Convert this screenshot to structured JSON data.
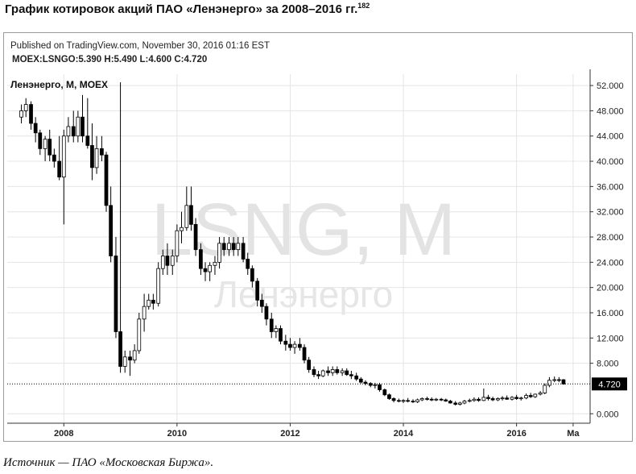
{
  "header": {
    "title": "График котировок акций ПАО «Ленэнерго» за 2008–2016 гг.",
    "footnote_ref": "182"
  },
  "chart_header": {
    "published": "Published on TradingView.com, November 30, 2016 01:16 EST",
    "ohlc_line": "MOEX:LSNGO:5.390 H:5.490 L:4.600 C:4.720"
  },
  "footer": {
    "source": "Источник — ПАО «Московская Биржа»."
  },
  "chart_data": {
    "type": "candlestick",
    "legend_label": "Ленэнерго, M, MOEX",
    "watermark": {
      "ticker": "LSNG, M",
      "name": "Ленэнерго"
    },
    "current_price_label": "4.720",
    "current_price": 4.72,
    "x_ticks": [
      {
        "label": "2008",
        "t": 2008.0
      },
      {
        "label": "2010",
        "t": 2010.0
      },
      {
        "label": "2012",
        "t": 2012.0
      },
      {
        "label": "2014",
        "t": 2014.0
      },
      {
        "label": "2016",
        "t": 2016.0
      },
      {
        "label": "Ma",
        "t": 2017.0
      }
    ],
    "y_ticks": [
      "52.000",
      "48.000",
      "44.000",
      "40.000",
      "36.000",
      "32.000",
      "28.000",
      "24.000",
      "20.000",
      "16.000",
      "12.000",
      "8.000",
      "0.000"
    ],
    "ylim": [
      -1.5,
      53.8
    ],
    "xlim": [
      2007.0,
      2017.3
    ],
    "colors": {
      "up": "#ffffff",
      "down": "#000000",
      "outline": "#000000",
      "grid": "#e4e4e4",
      "axis": "#333333"
    },
    "candles": [
      {
        "t": 2007.25,
        "o": 47,
        "h": 49,
        "l": 46,
        "c": 48
      },
      {
        "t": 2007.33,
        "o": 48,
        "h": 50,
        "l": 47,
        "c": 49
      },
      {
        "t": 2007.42,
        "o": 49,
        "h": 49.5,
        "l": 45,
        "c": 46
      },
      {
        "t": 2007.5,
        "o": 46,
        "h": 47,
        "l": 43,
        "c": 44.5
      },
      {
        "t": 2007.58,
        "o": 44.5,
        "h": 45,
        "l": 41,
        "c": 42
      },
      {
        "t": 2007.67,
        "o": 42,
        "h": 44,
        "l": 40,
        "c": 43.5
      },
      {
        "t": 2007.75,
        "o": 43.5,
        "h": 45,
        "l": 40,
        "c": 41
      },
      {
        "t": 2007.83,
        "o": 41,
        "h": 42,
        "l": 39,
        "c": 40
      },
      {
        "t": 2007.92,
        "o": 40,
        "h": 44,
        "l": 37,
        "c": 37.5
      },
      {
        "t": 2008.0,
        "o": 37.5,
        "h": 45,
        "l": 30,
        "c": 44
      },
      {
        "t": 2008.08,
        "o": 44,
        "h": 47,
        "l": 43,
        "c": 45.5
      },
      {
        "t": 2008.17,
        "o": 45.5,
        "h": 48,
        "l": 43,
        "c": 44
      },
      {
        "t": 2008.25,
        "o": 44,
        "h": 48,
        "l": 43,
        "c": 47
      },
      {
        "t": 2008.33,
        "o": 47,
        "h": 50.5,
        "l": 43,
        "c": 44
      },
      {
        "t": 2008.42,
        "o": 44,
        "h": 50,
        "l": 42,
        "c": 42.5
      },
      {
        "t": 2008.5,
        "o": 42.5,
        "h": 46,
        "l": 37,
        "c": 39
      },
      {
        "t": 2008.58,
        "o": 39,
        "h": 44,
        "l": 38,
        "c": 42
      },
      {
        "t": 2008.67,
        "o": 42,
        "h": 44,
        "l": 40,
        "c": 41
      },
      {
        "t": 2008.75,
        "o": 41,
        "h": 41.5,
        "l": 32,
        "c": 33
      },
      {
        "t": 2008.83,
        "o": 33,
        "h": 36,
        "l": 24,
        "c": 25
      },
      {
        "t": 2008.92,
        "o": 25,
        "h": 28,
        "l": 12,
        "c": 13
      },
      {
        "t": 2009.0,
        "o": 13,
        "h": 52.5,
        "l": 6.5,
        "c": 7.5
      },
      {
        "t": 2009.08,
        "o": 7.5,
        "h": 10,
        "l": 6.5,
        "c": 9
      },
      {
        "t": 2009.17,
        "o": 9,
        "h": 10,
        "l": 6,
        "c": 8.5
      },
      {
        "t": 2009.25,
        "o": 8.5,
        "h": 11,
        "l": 8,
        "c": 10
      },
      {
        "t": 2009.33,
        "o": 10,
        "h": 16,
        "l": 9.5,
        "c": 15
      },
      {
        "t": 2009.42,
        "o": 15,
        "h": 19,
        "l": 13,
        "c": 17
      },
      {
        "t": 2009.5,
        "o": 17,
        "h": 19,
        "l": 16.5,
        "c": 18
      },
      {
        "t": 2009.58,
        "o": 18,
        "h": 19,
        "l": 16.5,
        "c": 17.5
      },
      {
        "t": 2009.67,
        "o": 17.5,
        "h": 24,
        "l": 17,
        "c": 23
      },
      {
        "t": 2009.75,
        "o": 23,
        "h": 26,
        "l": 22,
        "c": 25
      },
      {
        "t": 2009.83,
        "o": 25,
        "h": 27,
        "l": 22,
        "c": 23.5
      },
      {
        "t": 2009.92,
        "o": 23.5,
        "h": 26,
        "l": 22,
        "c": 25
      },
      {
        "t": 2010.0,
        "o": 25,
        "h": 30,
        "l": 24,
        "c": 29
      },
      {
        "t": 2010.08,
        "o": 29,
        "h": 32,
        "l": 27,
        "c": 29.5
      },
      {
        "t": 2010.17,
        "o": 29.5,
        "h": 36,
        "l": 29,
        "c": 33
      },
      {
        "t": 2010.25,
        "o": 33,
        "h": 36,
        "l": 29,
        "c": 30
      },
      {
        "t": 2010.33,
        "o": 30,
        "h": 31,
        "l": 25,
        "c": 26
      },
      {
        "t": 2010.42,
        "o": 26,
        "h": 27,
        "l": 22,
        "c": 23
      },
      {
        "t": 2010.5,
        "o": 23,
        "h": 24,
        "l": 21,
        "c": 22.5
      },
      {
        "t": 2010.58,
        "o": 22.5,
        "h": 24,
        "l": 21,
        "c": 23.5
      },
      {
        "t": 2010.67,
        "o": 23.5,
        "h": 25,
        "l": 22,
        "c": 24
      },
      {
        "t": 2010.75,
        "o": 24,
        "h": 28,
        "l": 23,
        "c": 27
      },
      {
        "t": 2010.83,
        "o": 27,
        "h": 28,
        "l": 25,
        "c": 26
      },
      {
        "t": 2010.92,
        "o": 26,
        "h": 28,
        "l": 25,
        "c": 27
      },
      {
        "t": 2011.0,
        "o": 27,
        "h": 28,
        "l": 25,
        "c": 26
      },
      {
        "t": 2011.08,
        "o": 26,
        "h": 28,
        "l": 25,
        "c": 27
      },
      {
        "t": 2011.17,
        "o": 27,
        "h": 28,
        "l": 24,
        "c": 24.5
      },
      {
        "t": 2011.25,
        "o": 24.5,
        "h": 25.5,
        "l": 22,
        "c": 23
      },
      {
        "t": 2011.33,
        "o": 23,
        "h": 23.5,
        "l": 20,
        "c": 21
      },
      {
        "t": 2011.42,
        "o": 21,
        "h": 21.5,
        "l": 17,
        "c": 18
      },
      {
        "t": 2011.5,
        "o": 18,
        "h": 19,
        "l": 16,
        "c": 17
      },
      {
        "t": 2011.58,
        "o": 17,
        "h": 17.5,
        "l": 14,
        "c": 15
      },
      {
        "t": 2011.67,
        "o": 15,
        "h": 16,
        "l": 12,
        "c": 13
      },
      {
        "t": 2011.75,
        "o": 13,
        "h": 14,
        "l": 12,
        "c": 13.5
      },
      {
        "t": 2011.83,
        "o": 13.5,
        "h": 14,
        "l": 11,
        "c": 11.5
      },
      {
        "t": 2011.92,
        "o": 11.5,
        "h": 12.5,
        "l": 10,
        "c": 11
      },
      {
        "t": 2012.0,
        "o": 11,
        "h": 12,
        "l": 10,
        "c": 10.5
      },
      {
        "t": 2012.08,
        "o": 10.5,
        "h": 11.5,
        "l": 9.5,
        "c": 11
      },
      {
        "t": 2012.17,
        "o": 11,
        "h": 12,
        "l": 10,
        "c": 10.5
      },
      {
        "t": 2012.25,
        "o": 10.5,
        "h": 11,
        "l": 8,
        "c": 8.5
      },
      {
        "t": 2012.33,
        "o": 8.5,
        "h": 9,
        "l": 6.5,
        "c": 7
      },
      {
        "t": 2012.42,
        "o": 7,
        "h": 7.5,
        "l": 5.8,
        "c": 6.2
      },
      {
        "t": 2012.5,
        "o": 6.2,
        "h": 6.8,
        "l": 5.5,
        "c": 6
      },
      {
        "t": 2012.58,
        "o": 6,
        "h": 7,
        "l": 5.8,
        "c": 6.8
      },
      {
        "t": 2012.67,
        "o": 6.8,
        "h": 7.5,
        "l": 6,
        "c": 6.5
      },
      {
        "t": 2012.75,
        "o": 6.5,
        "h": 7.5,
        "l": 6,
        "c": 7
      },
      {
        "t": 2012.83,
        "o": 7,
        "h": 7.5,
        "l": 6.2,
        "c": 6.5
      },
      {
        "t": 2012.92,
        "o": 6.5,
        "h": 7.2,
        "l": 6,
        "c": 6.8
      },
      {
        "t": 2013.0,
        "o": 6.8,
        "h": 7.2,
        "l": 6,
        "c": 6.2
      },
      {
        "t": 2013.08,
        "o": 6.2,
        "h": 6.8,
        "l": 5.5,
        "c": 6
      },
      {
        "t": 2013.17,
        "o": 6,
        "h": 6.5,
        "l": 5.2,
        "c": 5.5
      },
      {
        "t": 2013.25,
        "o": 5.5,
        "h": 5.8,
        "l": 4.8,
        "c": 5
      },
      {
        "t": 2013.33,
        "o": 5,
        "h": 5.3,
        "l": 4.5,
        "c": 4.8
      },
      {
        "t": 2013.42,
        "o": 4.8,
        "h": 5,
        "l": 4.2,
        "c": 4.5
      },
      {
        "t": 2013.5,
        "o": 4.5,
        "h": 4.9,
        "l": 4,
        "c": 4.6
      },
      {
        "t": 2013.58,
        "o": 4.6,
        "h": 4.9,
        "l": 3.5,
        "c": 3.8
      },
      {
        "t": 2013.67,
        "o": 3.8,
        "h": 4,
        "l": 2.8,
        "c": 3
      },
      {
        "t": 2013.75,
        "o": 3,
        "h": 3.2,
        "l": 2.2,
        "c": 2.4
      },
      {
        "t": 2013.83,
        "o": 2.4,
        "h": 2.6,
        "l": 1.8,
        "c": 2.1
      },
      {
        "t": 2013.92,
        "o": 2.1,
        "h": 2.4,
        "l": 1.8,
        "c": 2
      },
      {
        "t": 2014.0,
        "o": 2,
        "h": 2.3,
        "l": 1.7,
        "c": 2.1
      },
      {
        "t": 2014.08,
        "o": 2.1,
        "h": 2.5,
        "l": 1.8,
        "c": 2
      },
      {
        "t": 2014.17,
        "o": 2,
        "h": 2.3,
        "l": 1.7,
        "c": 1.9
      },
      {
        "t": 2014.25,
        "o": 1.9,
        "h": 2.4,
        "l": 1.7,
        "c": 2.2
      },
      {
        "t": 2014.33,
        "o": 2.2,
        "h": 2.6,
        "l": 2,
        "c": 2.4
      },
      {
        "t": 2014.42,
        "o": 2.4,
        "h": 2.7,
        "l": 2.1,
        "c": 2.3
      },
      {
        "t": 2014.5,
        "o": 2.3,
        "h": 2.6,
        "l": 2,
        "c": 2.2
      },
      {
        "t": 2014.58,
        "o": 2.2,
        "h": 2.5,
        "l": 2,
        "c": 2.3
      },
      {
        "t": 2014.67,
        "o": 2.3,
        "h": 2.5,
        "l": 2,
        "c": 2.2
      },
      {
        "t": 2014.75,
        "o": 2.2,
        "h": 2.4,
        "l": 1.9,
        "c": 2
      },
      {
        "t": 2014.83,
        "o": 2,
        "h": 2.2,
        "l": 1.6,
        "c": 1.7
      },
      {
        "t": 2014.92,
        "o": 1.7,
        "h": 2,
        "l": 1.3,
        "c": 1.5
      },
      {
        "t": 2015.0,
        "o": 1.5,
        "h": 1.9,
        "l": 1.3,
        "c": 1.7
      },
      {
        "t": 2015.08,
        "o": 1.7,
        "h": 2.2,
        "l": 1.5,
        "c": 2
      },
      {
        "t": 2015.17,
        "o": 2,
        "h": 2.4,
        "l": 1.8,
        "c": 2.1
      },
      {
        "t": 2015.25,
        "o": 2.1,
        "h": 2.6,
        "l": 1.9,
        "c": 2.3
      },
      {
        "t": 2015.33,
        "o": 2.3,
        "h": 2.6,
        "l": 1.9,
        "c": 2.1
      },
      {
        "t": 2015.42,
        "o": 2.1,
        "h": 4,
        "l": 2,
        "c": 2.6
      },
      {
        "t": 2015.5,
        "o": 2.6,
        "h": 3,
        "l": 2.1,
        "c": 2.4
      },
      {
        "t": 2015.58,
        "o": 2.4,
        "h": 2.7,
        "l": 2,
        "c": 2.2
      },
      {
        "t": 2015.67,
        "o": 2.2,
        "h": 2.6,
        "l": 2,
        "c": 2.4
      },
      {
        "t": 2015.75,
        "o": 2.4,
        "h": 2.8,
        "l": 2.1,
        "c": 2.5
      },
      {
        "t": 2015.83,
        "o": 2.5,
        "h": 2.9,
        "l": 2.2,
        "c": 2.3
      },
      {
        "t": 2015.92,
        "o": 2.3,
        "h": 2.8,
        "l": 2.1,
        "c": 2.6
      },
      {
        "t": 2016.0,
        "o": 2.6,
        "h": 3,
        "l": 2.2,
        "c": 2.4
      },
      {
        "t": 2016.08,
        "o": 2.4,
        "h": 2.7,
        "l": 2.1,
        "c": 2.5
      },
      {
        "t": 2016.17,
        "o": 2.5,
        "h": 3.2,
        "l": 2.3,
        "c": 2.9
      },
      {
        "t": 2016.25,
        "o": 2.9,
        "h": 3.3,
        "l": 2.5,
        "c": 2.7
      },
      {
        "t": 2016.33,
        "o": 2.7,
        "h": 3.2,
        "l": 2.5,
        "c": 3.1
      },
      {
        "t": 2016.42,
        "o": 3.1,
        "h": 3.6,
        "l": 2.9,
        "c": 3.3
      },
      {
        "t": 2016.5,
        "o": 3.3,
        "h": 4.8,
        "l": 3.1,
        "c": 4.5
      },
      {
        "t": 2016.58,
        "o": 4.5,
        "h": 5.8,
        "l": 4.2,
        "c": 5.3
      },
      {
        "t": 2016.67,
        "o": 5.3,
        "h": 5.9,
        "l": 5,
        "c": 5.4
      },
      {
        "t": 2016.75,
        "o": 5.4,
        "h": 5.8,
        "l": 5,
        "c": 5.39
      },
      {
        "t": 2016.83,
        "o": 5.39,
        "h": 5.49,
        "l": 4.6,
        "c": 4.72
      }
    ]
  }
}
